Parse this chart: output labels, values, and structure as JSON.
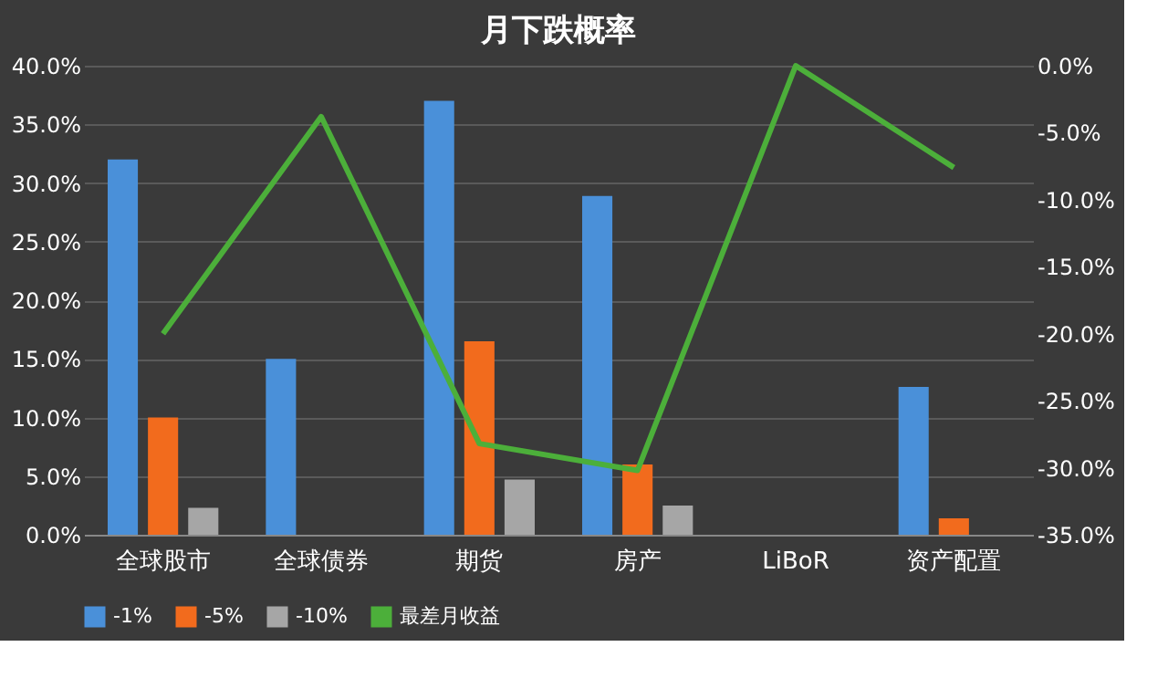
{
  "chart_data": {
    "type": "bar",
    "title": "月下跌概率",
    "categories": [
      "全球股市",
      "全球债券",
      "期货",
      "房产",
      "LiBoR",
      "资产配置"
    ],
    "series": [
      {
        "name": "-1%",
        "color": "#4a90d9",
        "values": [
          32.0,
          15.0,
          37.0,
          28.9,
          0,
          12.6
        ]
      },
      {
        "name": "-5%",
        "color": "#f26b1d",
        "values": [
          10.0,
          0,
          16.5,
          6.0,
          0,
          1.4
        ]
      },
      {
        "name": "-10%",
        "color": "#a6a6a6",
        "values": [
          2.3,
          0,
          4.7,
          2.5,
          0,
          0
        ]
      },
      {
        "name": "最差月收益",
        "color": "#4caf3a",
        "type": "line",
        "axis": "y2",
        "values": [
          -20.0,
          -3.8,
          -28.2,
          -30.2,
          0,
          -7.6
        ]
      }
    ],
    "ylim": [
      0,
      40
    ],
    "yticks": [
      {
        "value": 0,
        "label": "0.0%"
      },
      {
        "value": 5,
        "label": "5.0%"
      },
      {
        "value": 10,
        "label": "10.0%"
      },
      {
        "value": 15,
        "label": "15.0%"
      },
      {
        "value": 20,
        "label": "20.0%"
      },
      {
        "value": 25,
        "label": "25.0%"
      },
      {
        "value": 30,
        "label": "30.0%"
      },
      {
        "value": 35,
        "label": "35.0%"
      },
      {
        "value": 40,
        "label": "40.0%"
      }
    ],
    "y2lim": [
      -35,
      0
    ],
    "y2ticks": [
      {
        "value": -35,
        "label": "-35.0%"
      },
      {
        "value": -30,
        "label": "-30.0%"
      },
      {
        "value": -25,
        "label": "-25.0%"
      },
      {
        "value": -20,
        "label": "-20.0%"
      },
      {
        "value": -15,
        "label": "-15.0%"
      },
      {
        "value": -10,
        "label": "-10.0%"
      },
      {
        "value": -5,
        "label": "-5.0%"
      },
      {
        "value": 0,
        "label": "0.0%"
      }
    ],
    "grid": "y",
    "legend": "bottom",
    "marker": "none",
    "line_style": "solid"
  }
}
